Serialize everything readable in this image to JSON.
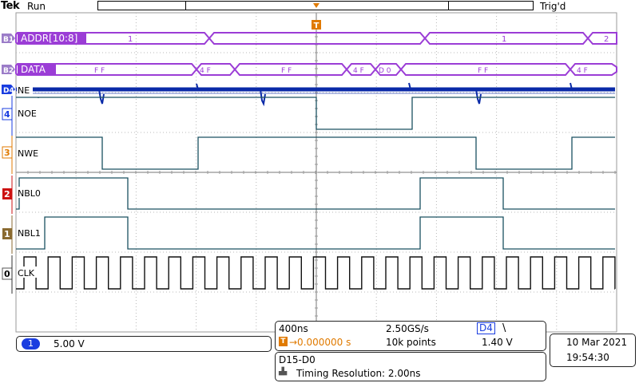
{
  "header": {
    "brand": "Tek",
    "run_state": "Run",
    "trigger_status": "Trig'd",
    "trigger_marker": "T"
  },
  "channels": {
    "b1": {
      "badge": "B1",
      "label": "ADDR[10:8]",
      "values": [
        "1",
        "1",
        "2"
      ]
    },
    "b2": {
      "badge": "B2",
      "label": "DATA",
      "values": [
        "F F",
        "4 F",
        "F F",
        "4 F",
        "D 0",
        "F F",
        "4 F"
      ]
    },
    "d4": {
      "badge": "D4",
      "label": "NE"
    },
    "d3": {
      "badge": "4",
      "label": "NOE"
    },
    "d2": {
      "badge": "3",
      "label": "NWE"
    },
    "d1": {
      "badge": "2",
      "label": "NBL0"
    },
    "d0": {
      "badge": "1",
      "label": "NBL1"
    },
    "clk": {
      "badge": "0",
      "label": "CLK"
    }
  },
  "measure": {
    "timebase": "400ns",
    "sample_rate": "2.50GS/s",
    "trig_source": "D4",
    "trig_slope": "\\",
    "trig_pos_icon": "T",
    "trig_offset": "→0.000000 s",
    "record_length": "10k points",
    "trig_level": "1.40 V"
  },
  "ch1": {
    "number": "1",
    "scale": "5.00 V"
  },
  "datetime": {
    "date": "10 Mar  2021",
    "time": "19:54:30"
  },
  "digital": {
    "group": "D15-D0",
    "resolution": "Timing Resolution: 2.00ns"
  },
  "colors": {
    "bus": "#9b3dd6",
    "ne_trace": "#0a2aa8",
    "trace": "#1a5060",
    "clk_trace": "#111111",
    "grid": "#b0b0b0",
    "badge_d4": "#1a3de0",
    "badge_nwe": "#e07a00",
    "badge_nbl0": "#cc1111",
    "badge_nbl1": "#8a6a30",
    "trigger": "#e07a00"
  }
}
